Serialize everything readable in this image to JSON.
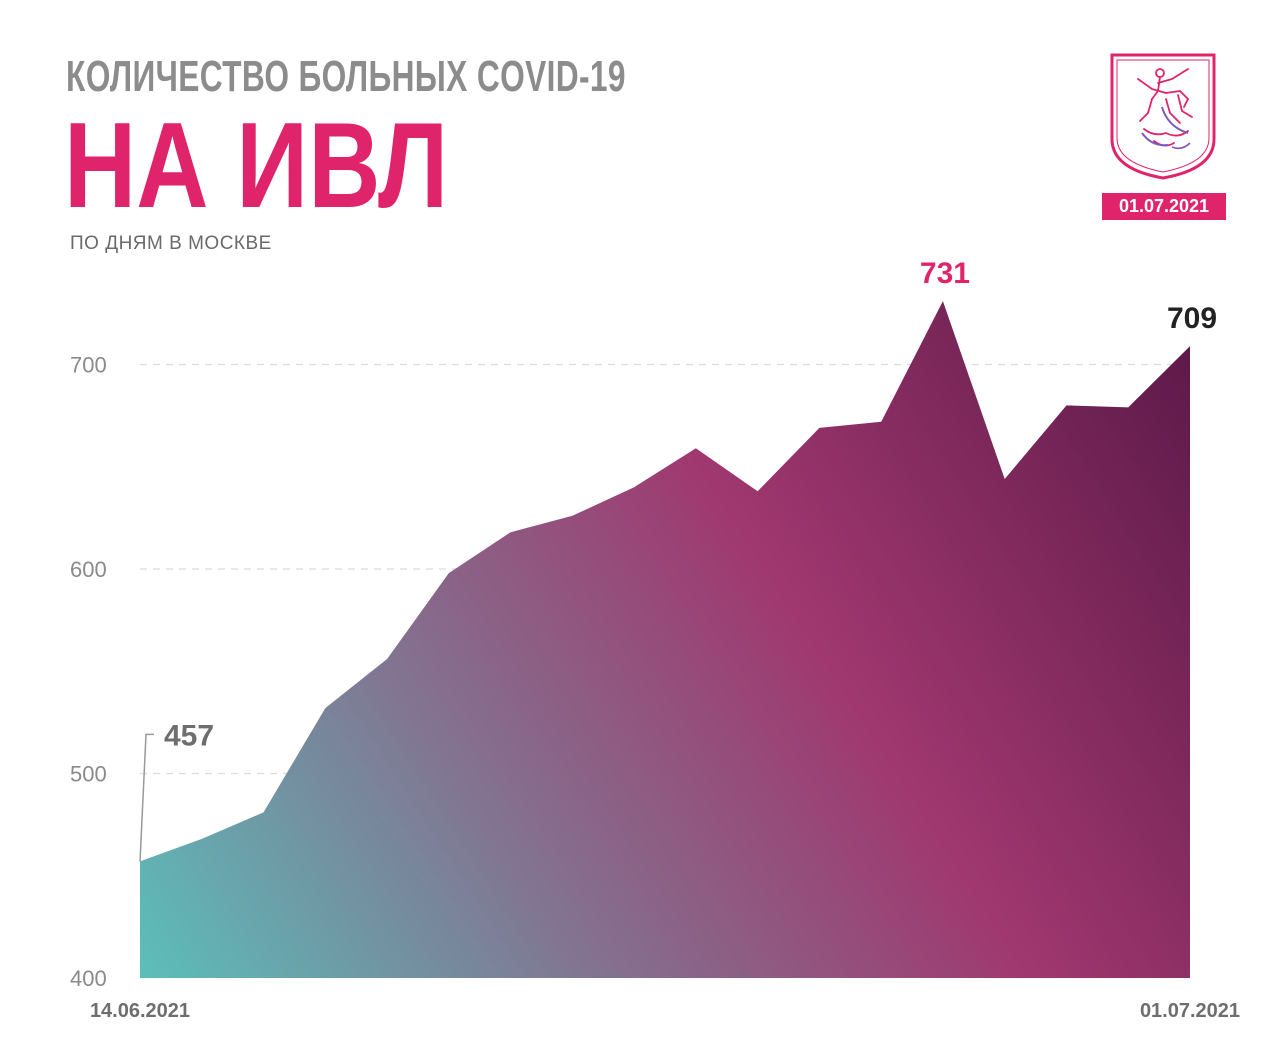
{
  "header": {
    "title_line1": "КОЛИЧЕСТВО БОЛЬНЫХ COVID-19",
    "title_line2": "НА ИВЛ",
    "subtitle": "ПО ДНЯМ В МОСКВЕ",
    "date_badge": "01.07.2021",
    "emblem_icon": "moscow-coat-of-arms-icon"
  },
  "colors": {
    "accent": "#e0246b",
    "title_gray": "#8c8c8c",
    "gradient_start": "#5bbfba",
    "gradient_mid": "#a0386f",
    "gradient_end": "#5a1848"
  },
  "chart_data": {
    "type": "area",
    "x_start_label": "14.06.2021",
    "x_end_label": "01.07.2021",
    "values": [
      457,
      468,
      481,
      532,
      556,
      598,
      618,
      626,
      640,
      659,
      638,
      669,
      672,
      731,
      644,
      680,
      679,
      709
    ],
    "ylim": [
      400,
      740
    ],
    "yticks": [
      400,
      500,
      600,
      700
    ],
    "grid": true,
    "annotations": [
      {
        "index": 0,
        "label": "457",
        "color": "#6e6e6e"
      },
      {
        "index": 13,
        "label": "731",
        "color": "#e0246b"
      },
      {
        "index": 17,
        "label": "709",
        "color": "#222222"
      }
    ]
  }
}
